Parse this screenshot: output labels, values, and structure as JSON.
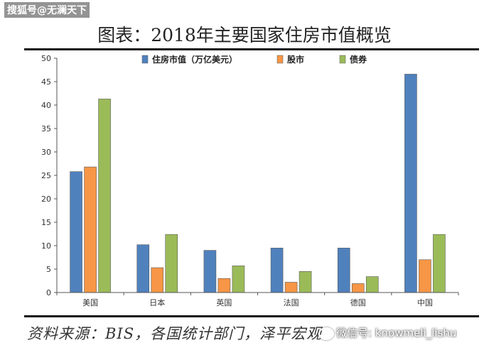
{
  "watermark_top": "搜狐号@无澜天下",
  "watermark_bottom": "微信号: knowmeli_lishu",
  "source": "资料来源：BIS，各国统计部门，泽平宏观",
  "colors": {
    "series1": "#4f81bd",
    "series2": "#f79646",
    "series3": "#9bbb59"
  },
  "chart_data": {
    "type": "bar",
    "title": "图表：2018年主要国家住房市值概览",
    "categories": [
      "美国",
      "日本",
      "英国",
      "法国",
      "德国",
      "中国"
    ],
    "series": [
      {
        "name": "住房市值（万亿美元）",
        "values": [
          25.8,
          10.2,
          9.0,
          9.5,
          9.5,
          46.6
        ]
      },
      {
        "name": "股市",
        "values": [
          26.8,
          5.3,
          3.0,
          2.2,
          1.9,
          7.0
        ]
      },
      {
        "name": "债券",
        "values": [
          41.3,
          12.4,
          5.7,
          4.5,
          3.4,
          12.4
        ]
      }
    ],
    "ylim": [
      0,
      50
    ],
    "yticks": [
      0,
      5,
      10,
      15,
      20,
      25,
      30,
      35,
      40,
      45,
      50
    ],
    "grid": false,
    "legend": "top"
  }
}
